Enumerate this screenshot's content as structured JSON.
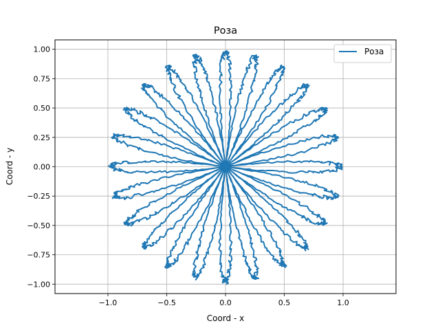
{
  "chart_data": {
    "type": "line",
    "title": "Роза",
    "xlabel": "Coord - x",
    "ylabel": "Coord - y",
    "xlim": [
      -1.45,
      1.45
    ],
    "ylim": [
      -1.08,
      1.08
    ],
    "xticks": [
      -1.0,
      -0.5,
      0.0,
      0.5,
      1.0
    ],
    "xtick_labels": [
      "−1.0",
      "−0.5",
      "0.0",
      "0.5",
      "1.0"
    ],
    "yticks": [
      -1.0,
      -0.75,
      -0.5,
      -0.25,
      0.0,
      0.25,
      0.5,
      0.75,
      1.0
    ],
    "ytick_labels": [
      "−1.00",
      "−0.75",
      "−0.50",
      "−0.25",
      "0.00",
      "0.25",
      "0.50",
      "0.75",
      "1.00"
    ],
    "grid": true,
    "legend_position": "top-right",
    "curve": "rose r = cos(k·θ), k = 12, 24 petals of radius 1.0, slightly jittered sampling",
    "rose_k": 12,
    "rose_amplitude": 1.0,
    "series": [
      {
        "name": "Роза",
        "color": "#1f77b4"
      }
    ]
  }
}
